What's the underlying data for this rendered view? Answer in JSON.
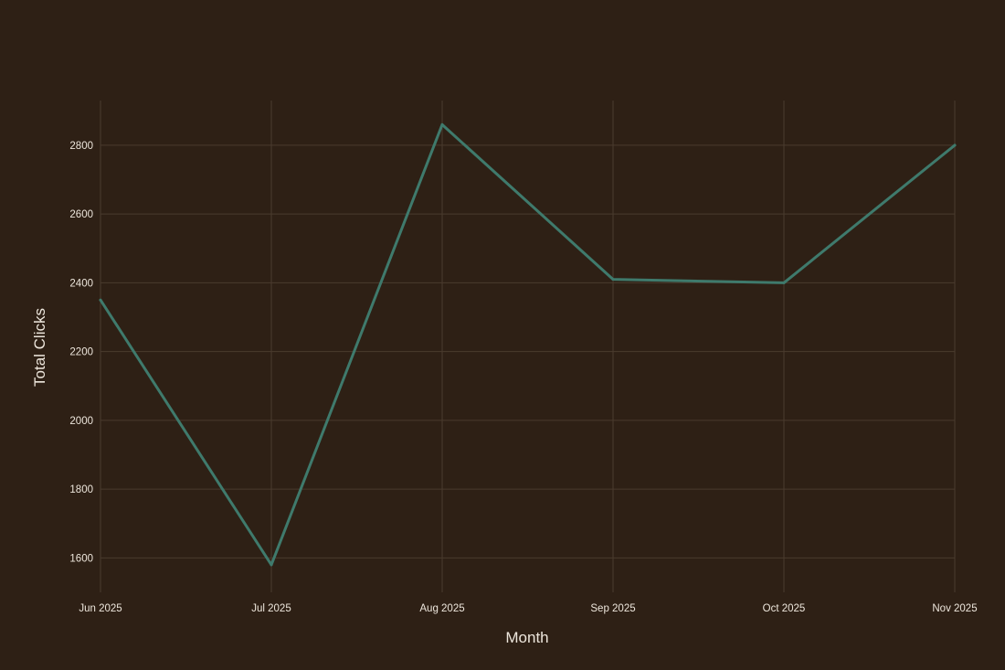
{
  "chart_data": {
    "type": "line",
    "title": "",
    "xlabel": "Month",
    "ylabel": "Total Clicks",
    "x": [
      "Jun 2025",
      "Jul 2025",
      "Aug 2025",
      "Sep 2025",
      "Oct 2025",
      "Nov 2025"
    ],
    "series": [
      {
        "values": [
          2350,
          1580,
          2860,
          2410,
          2400,
          2800
        ]
      }
    ],
    "yticks": [
      1600,
      1800,
      2000,
      2200,
      2400,
      2600,
      2800
    ],
    "ylim": [
      1500,
      2930
    ],
    "grid": true,
    "legend": "none"
  },
  "colors": {
    "background": "#2e2015",
    "line": "#3f7a6c",
    "grid": "#4a3b2e",
    "text": "#ede6dc"
  }
}
